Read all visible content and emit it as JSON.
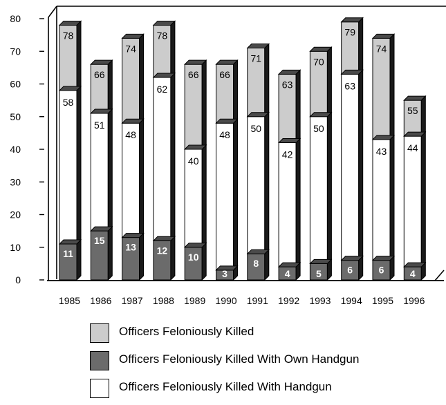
{
  "chart_data": {
    "type": "bar",
    "stacked_overlay": true,
    "categories": [
      "1985",
      "1986",
      "1987",
      "1988",
      "1989",
      "1990",
      "1991",
      "1992",
      "1993",
      "1994",
      "1995",
      "1996"
    ],
    "series": [
      {
        "name": "Officers Feloniously Killed",
        "values": [
          78,
          66,
          74,
          78,
          66,
          66,
          71,
          63,
          70,
          79,
          74,
          55
        ],
        "color": "#cccccc"
      },
      {
        "name": "Officers Feloniously Killed With Handgun",
        "values": [
          58,
          51,
          48,
          62,
          40,
          48,
          50,
          42,
          50,
          63,
          43,
          44
        ],
        "color": "#ffffff"
      },
      {
        "name": "Officers Feloniously Killed With Own Handgun",
        "values": [
          11,
          15,
          13,
          12,
          10,
          3,
          8,
          4,
          5,
          6,
          6,
          4
        ],
        "color": "#6b6b6b"
      }
    ],
    "yticks": [
      "0",
      "10",
      "20",
      "30",
      "40",
      "50",
      "60",
      "70",
      "80"
    ],
    "ylim": [
      0,
      80
    ],
    "title": "",
    "xlabel": "",
    "ylabel": ""
  },
  "legend": [
    {
      "label": "Officers Feloniously Killed",
      "color": "#cccccc"
    },
    {
      "label": "Officers Feloniously Killed With Own Handgun",
      "color": "#6b6b6b"
    },
    {
      "label": "Officers Feloniously Killed With Handgun",
      "color": "#ffffff"
    }
  ]
}
